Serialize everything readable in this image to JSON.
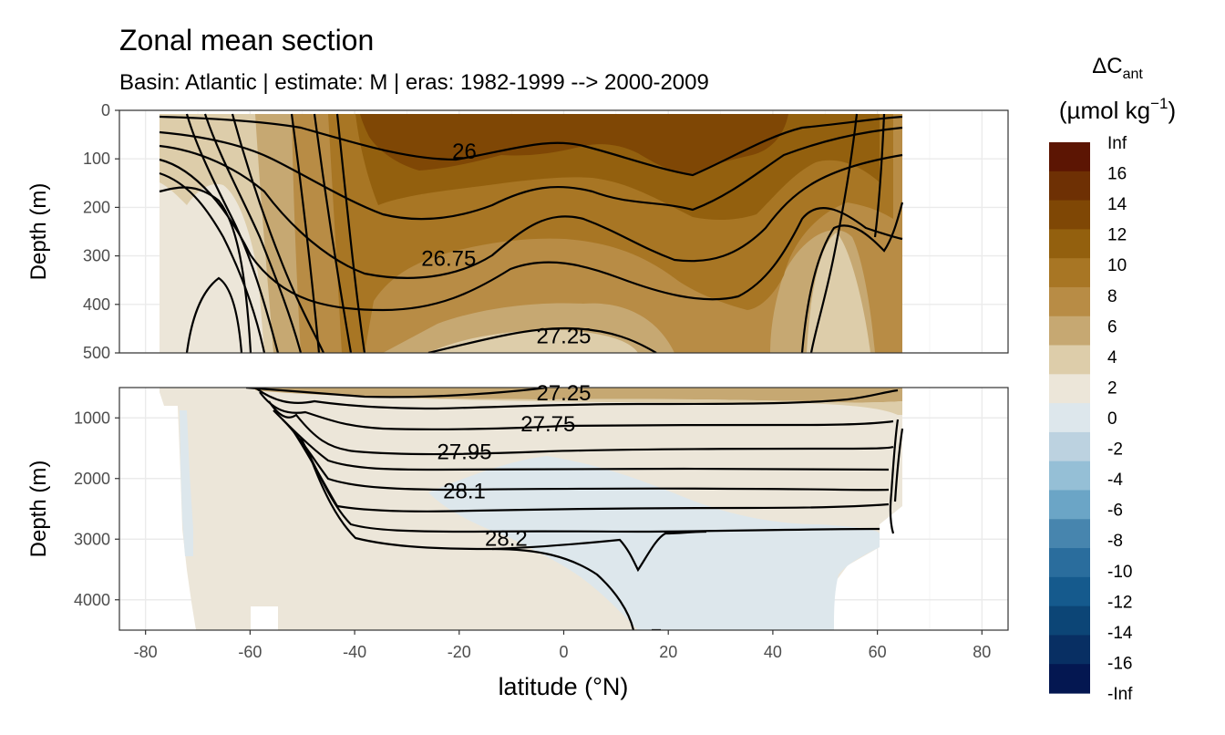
{
  "chart_data": {
    "type": "heatmap",
    "title": "Zonal mean section",
    "subtitle": "Basin: Atlantic | estimate: M  | eras: 1982-1999 --> 2000-2009",
    "xlabel": "latitude (°N)",
    "ylabel": "Depth (m)",
    "x_ticks": [
      -80,
      -60,
      -40,
      -20,
      0,
      20,
      40,
      60,
      80
    ],
    "xlim": [
      -85,
      85
    ],
    "grid": true,
    "panels": [
      {
        "name": "upper",
        "ylim": [
          500,
          0
        ],
        "y_ticks": [
          0,
          100,
          200,
          300,
          400,
          500
        ]
      },
      {
        "name": "lower",
        "ylim": [
          4500,
          500
        ],
        "y_ticks": [
          1000,
          2000,
          3000,
          4000
        ]
      }
    ],
    "legend": {
      "title": "ΔC",
      "title_subscript": "ant",
      "units_text": "(µmol kg",
      "units_superscript": "−1",
      "units_close": ")",
      "position": "right",
      "labels": [
        "Inf",
        "16",
        "14",
        "12",
        "10",
        "8",
        "6",
        "4",
        "2",
        "0",
        "-2",
        "-4",
        "-6",
        "-8",
        "-10",
        "-12",
        "-14",
        "-16",
        "-Inf"
      ],
      "colors": [
        "#5c1503",
        "#6e3004",
        "#7f4705",
        "#93600e",
        "#a87624",
        "#b88c45",
        "#c6a872",
        "#ddcdaa",
        "#ece6d9",
        "#dde7ec",
        "#bcd2e0",
        "#95bfd6",
        "#6ba5c6",
        "#4785ae",
        "#2a6d9d",
        "#155a8d",
        "#0c4576",
        "#082f63",
        "#041751"
      ]
    },
    "field_series": [
      {
        "name": "lower-panel-background",
        "value_range": [
          0,
          2
        ],
        "color": "#ece6d9"
      },
      {
        "name": "negative-region",
        "value_range": [
          -2,
          0
        ],
        "color": "#dde7ec"
      },
      {
        "name": "upper-layer-2-4",
        "value_range": [
          2,
          4
        ],
        "color": "#ddcdaa"
      },
      {
        "name": "upper-layer-4-6",
        "value_range": [
          4,
          6
        ],
        "color": "#c6a872"
      },
      {
        "name": "upper-layer-6-8",
        "value_range": [
          6,
          8
        ],
        "color": "#b88c45"
      },
      {
        "name": "upper-layer-8-10",
        "value_range": [
          8,
          10
        ],
        "color": "#a87624"
      },
      {
        "name": "upper-layer-10-12",
        "value_range": [
          10,
          12
        ],
        "color": "#93600e"
      },
      {
        "name": "upper-layer-12-14",
        "value_range": [
          12,
          14
        ],
        "color": "#7f4705"
      }
    ],
    "isopycnal_labels": [
      {
        "text": "26",
        "lat": -19,
        "depth": 85
      },
      {
        "text": "26.75",
        "lat": -22,
        "depth": 305
      },
      {
        "text": "27.25",
        "lat": 0,
        "depth": 465
      },
      {
        "text": "27.25",
        "lat": 0,
        "depth": 500
      },
      {
        "text": "27.75",
        "lat": -3,
        "depth": 1100
      },
      {
        "text": "27.95",
        "lat": -19,
        "depth": 1560
      },
      {
        "text": "28.1",
        "lat": -19,
        "depth": 2210
      },
      {
        "text": "28.2",
        "lat": -11,
        "depth": 2990
      }
    ]
  }
}
